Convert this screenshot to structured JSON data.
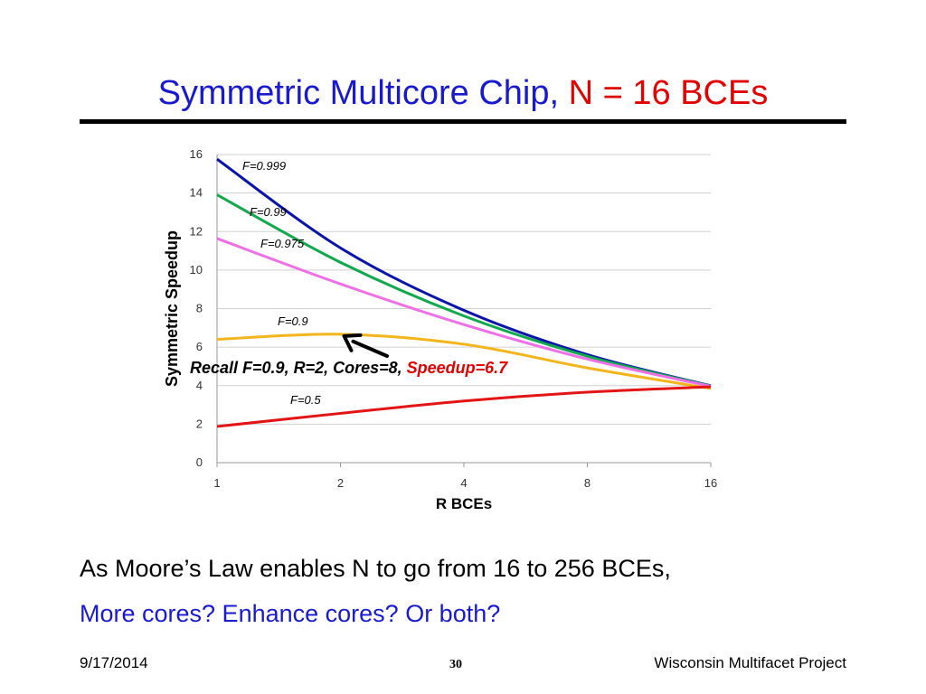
{
  "slide": {
    "title_main": "Symmetric Multicore Chip,",
    "title_highlight": "N = 16 BCEs",
    "body_line1": "As Moore’s Law enables N to go from 16 to 256 BCEs,",
    "body_line2": "More cores? Enhance cores? Or both?",
    "footer_date": "9/17/2014",
    "footer_page": "30",
    "footer_org": "Wisconsin Multifacet Project"
  },
  "chart_data": {
    "type": "line",
    "title": "",
    "xlabel": "R BCEs",
    "ylabel": "Symmetric Speedup",
    "x": [
      1,
      2,
      4,
      8,
      16
    ],
    "x_scale": "log2",
    "ylim": [
      0,
      16
    ],
    "yticks": [
      0,
      2,
      4,
      6,
      8,
      10,
      12,
      14,
      16
    ],
    "grid": true,
    "series": [
      {
        "name": "F=0.999",
        "color": "#0a14a8",
        "values": [
          15.76,
          11.15,
          7.91,
          5.61,
          3.99
        ]
      },
      {
        "name": "F=0.99",
        "color": "#12a84e",
        "values": [
          13.91,
          10.4,
          7.62,
          5.53,
          3.98
        ]
      },
      {
        "name": "F=0.975",
        "color": "#ee70e6",
        "values": [
          11.64,
          9.28,
          7.17,
          5.38,
          3.96
        ]
      },
      {
        "name": "F=0.9",
        "color": "#f2b51c",
        "values": [
          6.4,
          6.67,
          6.15,
          4.92,
          3.85
        ]
      },
      {
        "name": "F=0.5",
        "color": "#e21414",
        "values": [
          1.88,
          2.56,
          3.2,
          3.66,
          3.94
        ]
      }
    ],
    "annotation": {
      "text": "Recall F=0.9, R=2, Cores=8,",
      "highlight": "Speedup=6.7",
      "points_to": {
        "x": 2,
        "y": 6.67
      }
    }
  }
}
